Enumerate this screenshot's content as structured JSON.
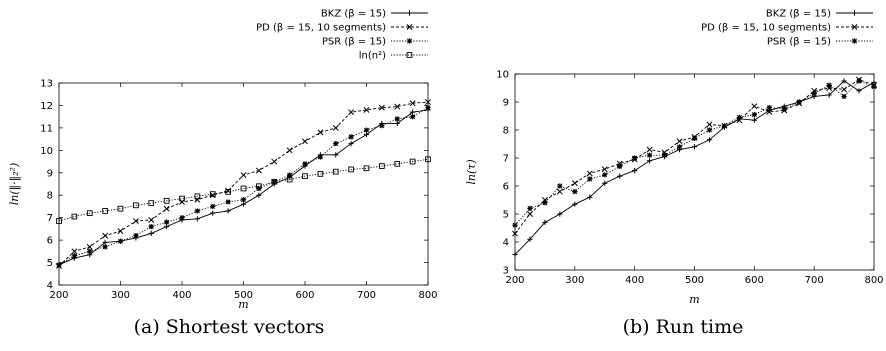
{
  "chart_data": [
    {
      "type": "line",
      "caption": "(a) Shortest vectors",
      "xlabel": "m",
      "ylabel": "ln(‖·‖₂²)",
      "xlim": [
        200,
        800
      ],
      "ylim": [
        4,
        13
      ],
      "xticks": [
        200,
        300,
        400,
        500,
        600,
        700,
        800
      ],
      "yticks": [
        4,
        5,
        6,
        7,
        8,
        9,
        10,
        11,
        12,
        13
      ],
      "legend_position": "top-right",
      "x": [
        200,
        225,
        250,
        275,
        300,
        325,
        350,
        375,
        400,
        425,
        450,
        475,
        500,
        525,
        550,
        575,
        600,
        625,
        650,
        675,
        700,
        725,
        750,
        775,
        800
      ],
      "series": [
        {
          "name": "BKZ (β = 15)",
          "marker": "plus",
          "dash": "solid",
          "values": [
            4.9,
            5.2,
            5.35,
            5.9,
            5.95,
            6.1,
            6.3,
            6.6,
            6.9,
            6.95,
            7.2,
            7.3,
            7.6,
            8.0,
            8.5,
            8.8,
            9.3,
            9.8,
            9.8,
            10.3,
            10.7,
            11.2,
            11.2,
            11.7,
            11.8
          ]
        },
        {
          "name": "PD (β = 15, 10 segments)",
          "marker": "x",
          "dash": "dashed",
          "values": [
            4.85,
            5.5,
            5.7,
            6.2,
            6.4,
            6.85,
            6.9,
            7.4,
            7.7,
            7.8,
            8.0,
            8.2,
            8.9,
            9.1,
            9.5,
            10.0,
            10.4,
            10.8,
            11.0,
            11.7,
            11.8,
            11.9,
            11.95,
            12.1,
            12.15
          ]
        },
        {
          "name": "PSR (β = 15)",
          "marker": "star",
          "dash": "dotted",
          "values": [
            4.9,
            5.3,
            5.5,
            5.7,
            5.95,
            6.2,
            6.6,
            6.8,
            7.0,
            7.3,
            7.5,
            7.7,
            7.8,
            8.3,
            8.6,
            8.9,
            9.4,
            9.7,
            10.3,
            10.6,
            10.9,
            11.1,
            11.4,
            11.5,
            11.9
          ]
        },
        {
          "name": "ln(n²)",
          "marker": "square",
          "dash": "dotted",
          "values": [
            6.85,
            7.05,
            7.2,
            7.3,
            7.4,
            7.55,
            7.65,
            7.75,
            7.85,
            7.95,
            8.05,
            8.15,
            8.3,
            8.4,
            8.6,
            8.7,
            8.85,
            8.95,
            9.05,
            9.15,
            9.2,
            9.3,
            9.4,
            9.5,
            9.6
          ]
        }
      ]
    },
    {
      "type": "line",
      "caption": "(b) Run time",
      "xlabel": "m",
      "ylabel": "ln(τ)",
      "xlim": [
        200,
        800
      ],
      "ylim": [
        3,
        10
      ],
      "xticks": [
        200,
        300,
        400,
        500,
        600,
        700,
        800
      ],
      "yticks": [
        3,
        4,
        5,
        6,
        7,
        8,
        9,
        10
      ],
      "legend_position": "top-right",
      "x": [
        200,
        225,
        250,
        275,
        300,
        325,
        350,
        375,
        400,
        425,
        450,
        475,
        500,
        525,
        550,
        575,
        600,
        625,
        650,
        675,
        700,
        725,
        750,
        775,
        800
      ],
      "series": [
        {
          "name": "BKZ (β = 15)",
          "marker": "plus",
          "dash": "solid",
          "values": [
            3.55,
            4.1,
            4.7,
            5.0,
            5.35,
            5.6,
            6.1,
            6.35,
            6.55,
            6.9,
            7.05,
            7.3,
            7.4,
            7.65,
            8.1,
            8.4,
            8.35,
            8.7,
            8.85,
            9.0,
            9.2,
            9.25,
            9.75,
            9.4,
            9.7
          ]
        },
        {
          "name": "PD (β = 15, 10 segments)",
          "marker": "x",
          "dash": "dashed",
          "values": [
            4.3,
            5.0,
            5.5,
            5.8,
            6.1,
            6.45,
            6.6,
            6.8,
            6.95,
            7.3,
            7.2,
            7.6,
            7.75,
            8.2,
            8.15,
            8.35,
            8.85,
            8.65,
            8.7,
            8.95,
            9.4,
            9.5,
            9.45,
            9.8,
            9.6
          ]
        },
        {
          "name": "PSR (β = 15)",
          "marker": "star",
          "dash": "dotted",
          "values": [
            4.6,
            5.2,
            5.4,
            6.0,
            5.8,
            6.25,
            6.4,
            6.7,
            7.0,
            7.1,
            7.1,
            7.4,
            7.7,
            8.0,
            8.15,
            8.45,
            8.55,
            8.8,
            8.75,
            9.0,
            9.3,
            9.6,
            9.2,
            9.75,
            9.55
          ]
        }
      ]
    }
  ]
}
